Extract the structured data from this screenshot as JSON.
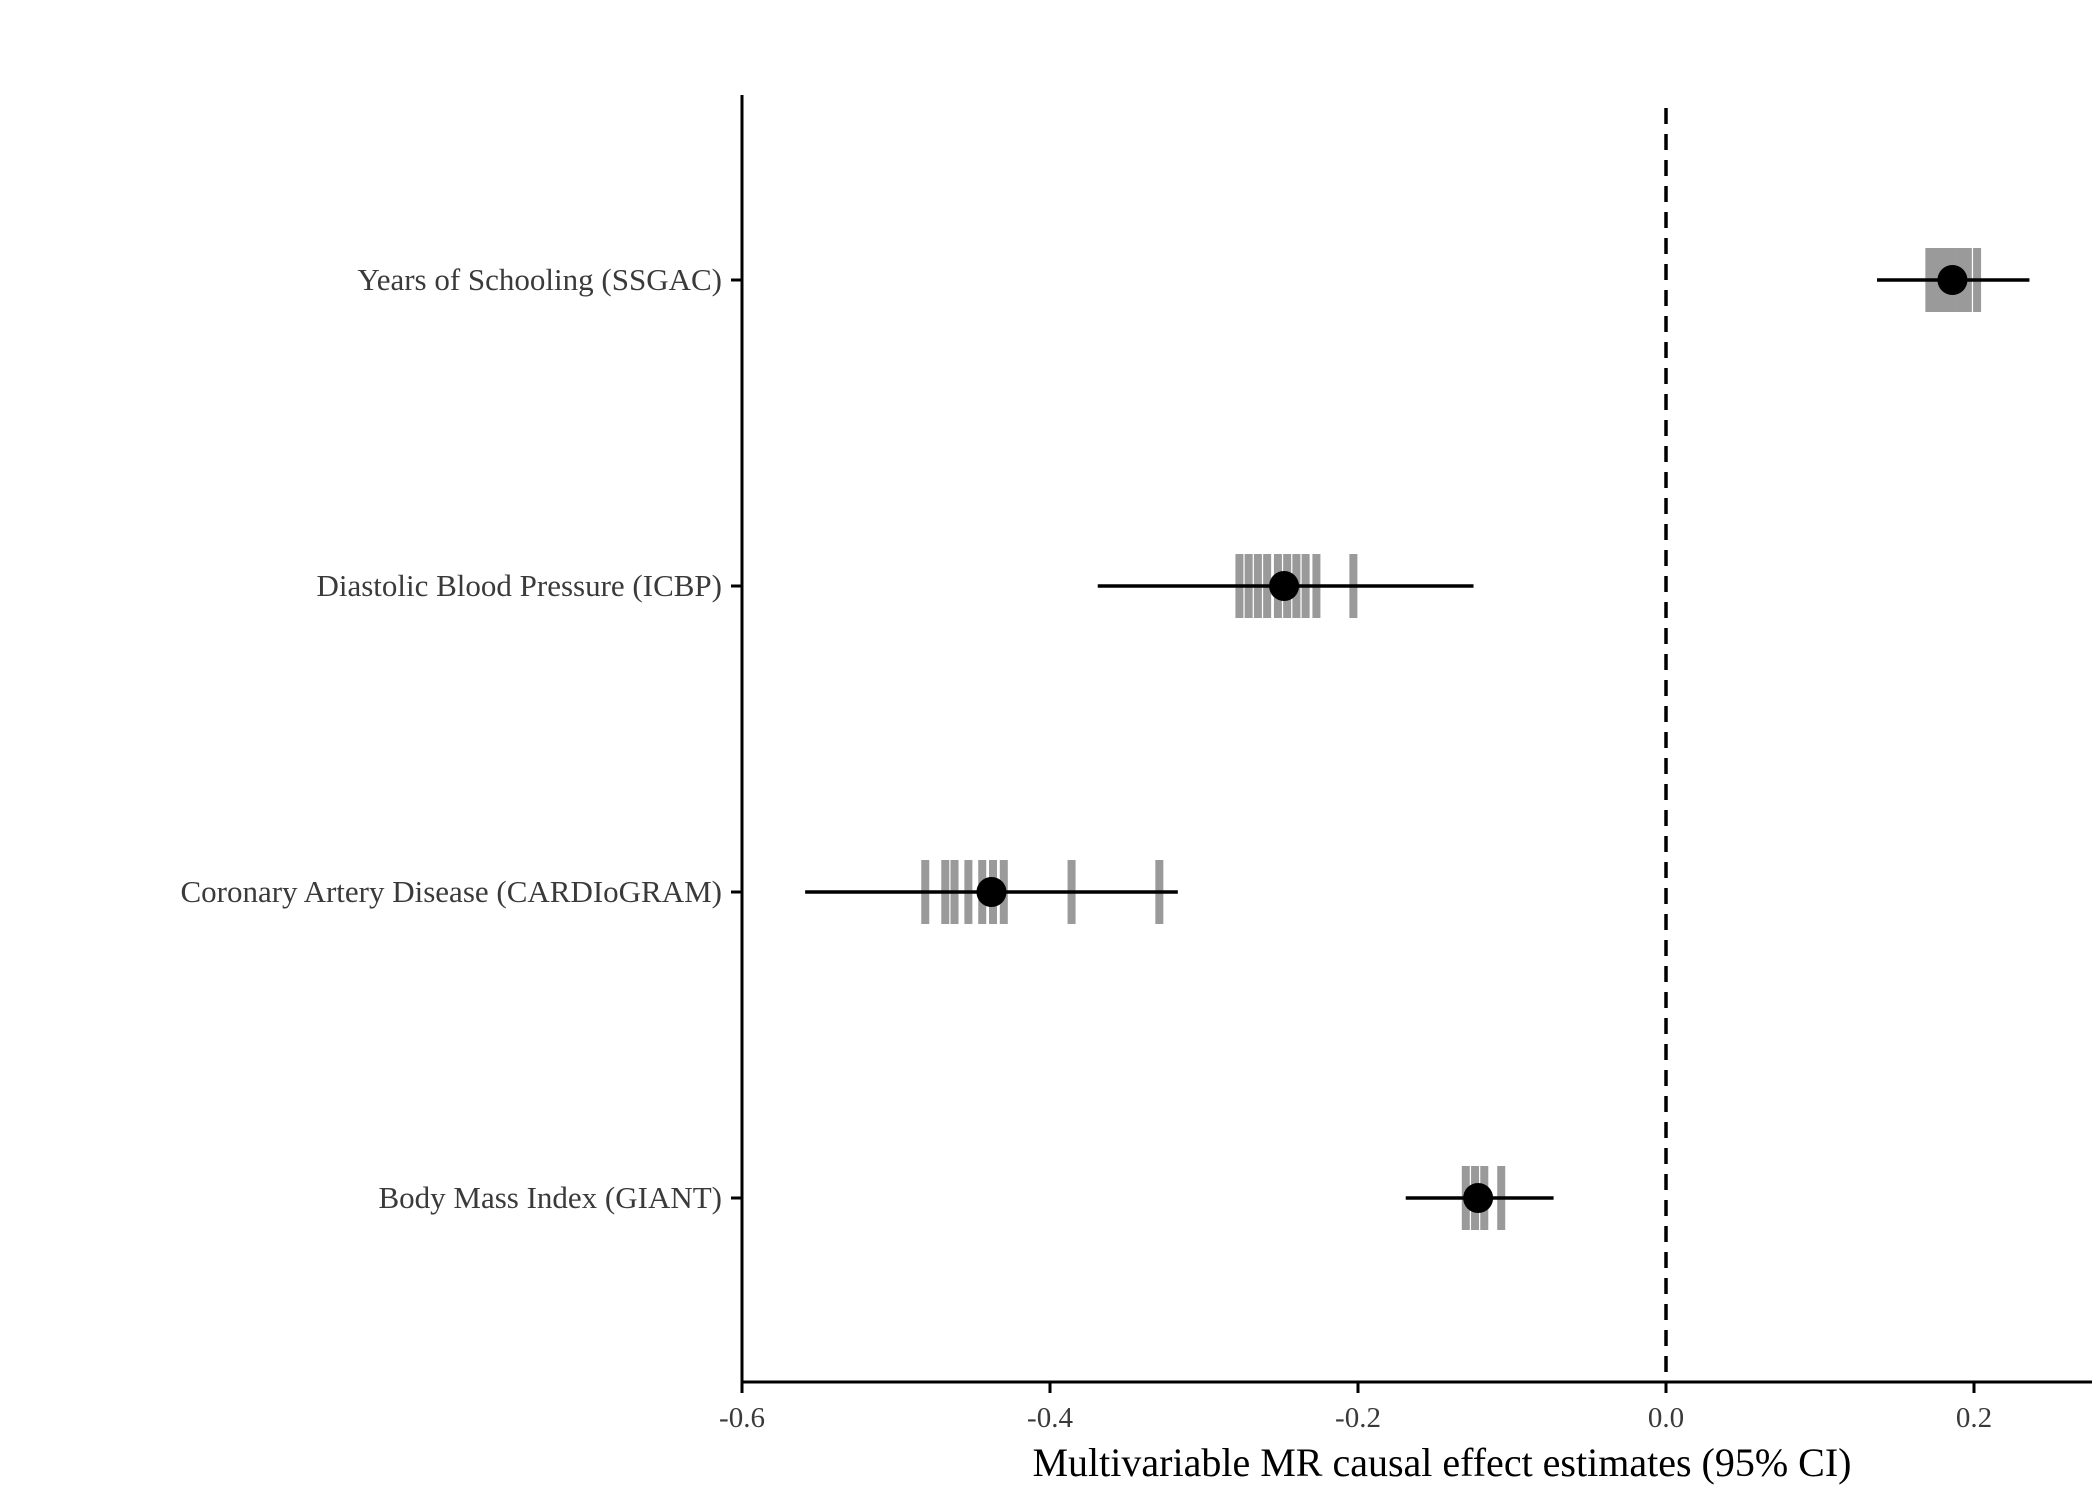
{
  "chart_data": {
    "type": "forest",
    "title": "",
    "xlabel": "Multivariable MR causal effect estimates (95% CI)",
    "ylabel": "",
    "xlim": [
      -0.6,
      0.27
    ],
    "xticks": [
      -0.6,
      -0.4,
      -0.2,
      0.0,
      0.2
    ],
    "xtick_labels": [
      "-0.6",
      "-0.4",
      "-0.2",
      "0.0",
      "0.2"
    ],
    "reference_line": 0.0,
    "grid": false,
    "colors": {
      "point": "#000000",
      "interval": "#000000",
      "rug": "#9a9a9a",
      "reference": "#000000"
    },
    "rows": [
      {
        "label": "Years of Schooling (SSGAC)",
        "estimate": 0.186,
        "ci_low": 0.137,
        "ci_high": 0.236,
        "sensitivity_estimates": [
          0.171,
          0.176,
          0.181,
          0.186,
          0.191,
          0.196,
          0.202
        ]
      },
      {
        "label": "Diastolic Blood Pressure (ICBP)",
        "estimate": -0.248,
        "ci_low": -0.369,
        "ci_high": -0.125,
        "sensitivity_estimates": [
          -0.277,
          -0.271,
          -0.265,
          -0.259,
          -0.252,
          -0.246,
          -0.24,
          -0.234,
          -0.227,
          -0.203
        ]
      },
      {
        "label": "Coronary Artery Disease (CARDIoGRAM)",
        "estimate": -0.438,
        "ci_low": -0.559,
        "ci_high": -0.317,
        "sensitivity_estimates": [
          -0.481,
          -0.468,
          -0.462,
          -0.453,
          -0.444,
          -0.437,
          -0.43,
          -0.386,
          -0.329
        ]
      },
      {
        "label": "Body Mass Index (GIANT)",
        "estimate": -0.122,
        "ci_low": -0.169,
        "ci_high": -0.073,
        "sensitivity_estimates": [
          -0.13,
          -0.124,
          -0.118,
          -0.107
        ]
      }
    ]
  }
}
